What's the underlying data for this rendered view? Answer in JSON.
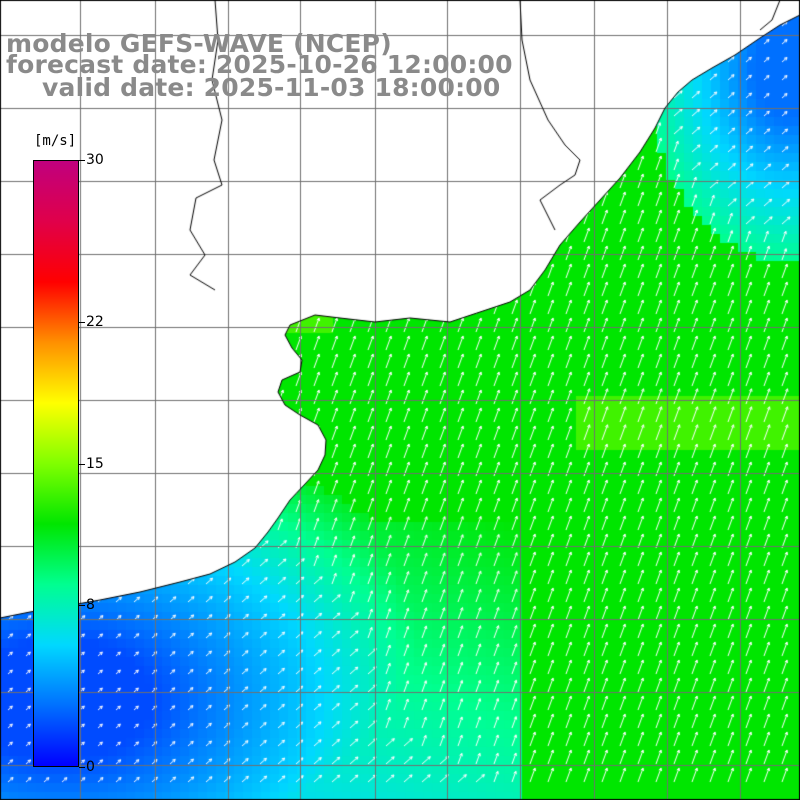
{
  "title": {
    "line1": "modelo GEFS-WAVE (NCEP)",
    "line2": "forecast date: 2025-10-26 12:00:00",
    "line3": "valid date: 2025-11-03 18:00:00"
  },
  "colorbar": {
    "unit_label": "[m/s]",
    "min": 0,
    "max": 30,
    "ticks": [
      {
        "value": 30,
        "label": "30"
      },
      {
        "value": 22,
        "label": "22"
      },
      {
        "value": 15,
        "label": "15"
      },
      {
        "value": 8,
        "label": "8"
      },
      {
        "value": 0,
        "label": "0"
      }
    ],
    "colors": [
      "#0000ff",
      "#0070ff",
      "#00d8ff",
      "#00ff90",
      "#00e600",
      "#80ff00",
      "#ffff00",
      "#ff9000",
      "#ff0000",
      "#e0004a",
      "#c0007e"
    ]
  },
  "map": {
    "field": "wind speed",
    "wind_direction": "from south-west (arrows pointing north-north-east)",
    "speed_regions": [
      {
        "area": "south-west coast and open sea",
        "speed": "2-5 m/s",
        "color": "#0040ff"
      },
      {
        "area": "south-central band",
        "speed": "7-9 m/s",
        "color": "#20e8ff"
      },
      {
        "area": "north-east offshore",
        "speed": "3-6 m/s",
        "color": "#1050ff"
      },
      {
        "area": "central and eastern ocean",
        "speed": "11-13 m/s",
        "color": "#20f020"
      }
    ],
    "land_color": "#ffffff",
    "grid_color": "#707070",
    "coast_color": "#000000",
    "arrow_color": "#ffffff"
  }
}
